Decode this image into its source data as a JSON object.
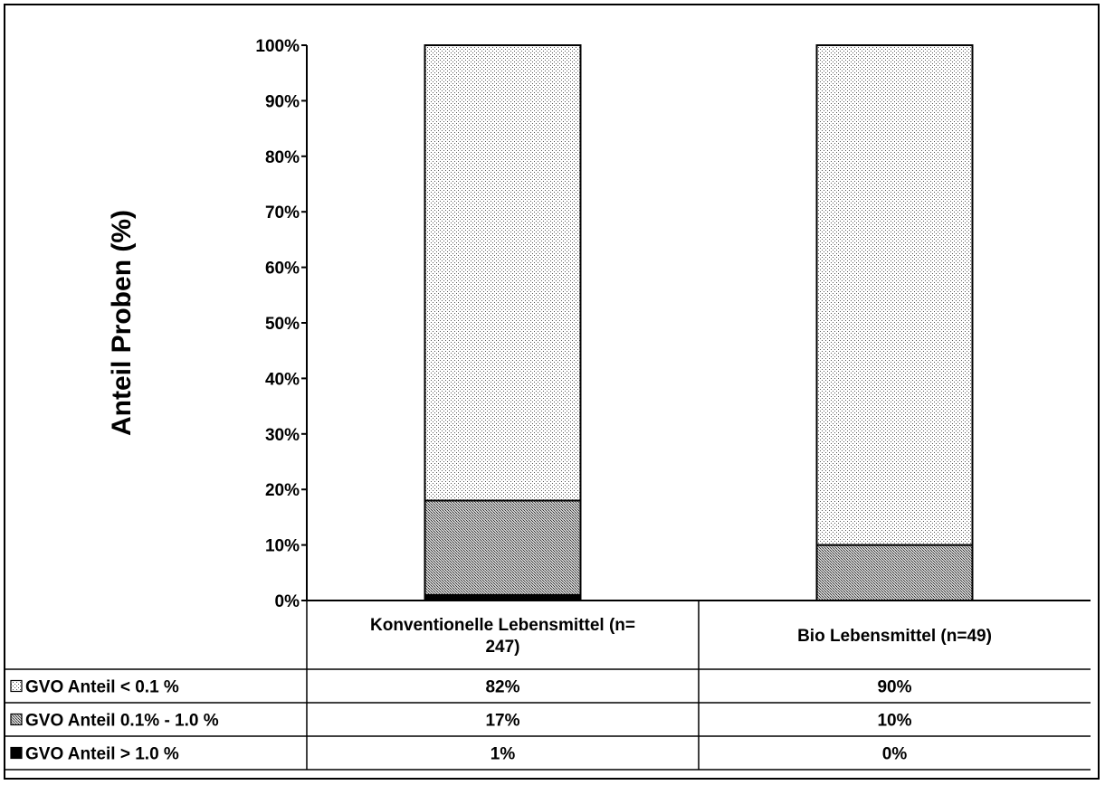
{
  "chart_data": {
    "type": "bar",
    "stacked": true,
    "stack_normalized_percent": true,
    "ylabel": "Anteil Proben (%)",
    "ylim": [
      0,
      100
    ],
    "yticks": [
      "0%",
      "10%",
      "20%",
      "30%",
      "40%",
      "50%",
      "60%",
      "70%",
      "80%",
      "90%",
      "100%"
    ],
    "categories": [
      "Konventionelle Lebensmittel (n= 247)",
      "Bio Lebensmittel (n=49)"
    ],
    "series": [
      {
        "name": "GVO Anteil > 1.0 %",
        "values": [
          1,
          0
        ],
        "labels": [
          "1%",
          "0%"
        ],
        "fill": "solid-black"
      },
      {
        "name": "GVO Anteil 0.1% - 1.0 %",
        "values": [
          17,
          10
        ],
        "labels": [
          "17%",
          "10%"
        ],
        "fill": "dense-gray-pattern"
      },
      {
        "name": "GVO Anteil < 0.1 %",
        "values": [
          82,
          90
        ],
        "labels": [
          "82%",
          "90%"
        ],
        "fill": "light-dotted-pattern"
      }
    ],
    "data_table": true,
    "grid": false,
    "legend": "data-table-rows"
  }
}
